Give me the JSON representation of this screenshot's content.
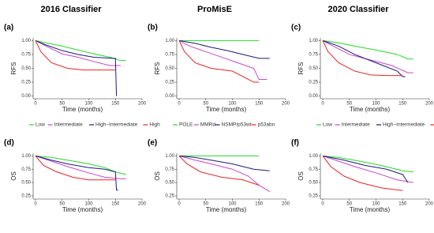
{
  "chart_data": [
    {
      "type": "line",
      "title": "2016 Classifier",
      "label": "(a)",
      "ylabel": "RFS",
      "xlabel": "Time (months)",
      "legend": true,
      "xlim": [
        0,
        200
      ],
      "xticks": [
        0,
        50,
        100,
        150,
        200
      ],
      "ylim": [
        -0.02,
        1.02
      ],
      "yticks": [
        {
          "value": 0,
          "label": "0.00"
        },
        {
          "value": 0.25,
          "label": "0.25"
        },
        {
          "value": 0.5,
          "label": "0.50"
        },
        {
          "value": 0.75,
          "label": "0.75"
        },
        {
          "value": 1,
          "label": "1.00"
        }
      ],
      "series": [
        {
          "name": "Low",
          "color": "#22dd22",
          "x": [
            0,
            20,
            50,
            80,
            110,
            140,
            160,
            170
          ],
          "values": [
            1,
            0.96,
            0.9,
            0.83,
            0.76,
            0.7,
            0.64,
            0.64
          ]
        },
        {
          "name": "Intermediate",
          "color": "#cc44cc",
          "x": [
            0,
            20,
            50,
            80,
            110,
            140,
            160
          ],
          "values": [
            1,
            0.9,
            0.76,
            0.7,
            0.62,
            0.55,
            0.55
          ]
        },
        {
          "name": "High−Intermediate",
          "color": "#1a1a7a",
          "x": [
            0,
            20,
            50,
            80,
            110,
            145,
            150,
            152
          ],
          "values": [
            1,
            0.92,
            0.82,
            0.75,
            0.7,
            0.68,
            0.68,
            0
          ]
        },
        {
          "name": "High",
          "color": "#ee2222",
          "x": [
            0,
            10,
            30,
            60,
            90,
            150
          ],
          "values": [
            1,
            0.8,
            0.6,
            0.5,
            0.47,
            0.47
          ]
        }
      ]
    },
    {
      "type": "line",
      "title": "ProMisE",
      "label": "(b)",
      "ylabel": "RFS",
      "xlabel": "Time (months)",
      "legend": true,
      "xlim": [
        0,
        200
      ],
      "xticks": [
        0,
        50,
        100,
        150,
        200
      ],
      "ylim": [
        -0.02,
        1.02
      ],
      "yticks": [
        {
          "value": 0,
          "label": "0.00"
        },
        {
          "value": 0.25,
          "label": "0.25"
        },
        {
          "value": 0.5,
          "label": "0.50"
        },
        {
          "value": 0.75,
          "label": "0.75"
        },
        {
          "value": 1,
          "label": "1.00"
        }
      ],
      "series": [
        {
          "name": "POLE",
          "color": "#22dd22",
          "x": [
            0,
            150
          ],
          "values": [
            1,
            1
          ]
        },
        {
          "name": "MMRd",
          "color": "#cc44cc",
          "x": [
            0,
            20,
            50,
            80,
            110,
            140,
            150,
            165
          ],
          "values": [
            1,
            0.9,
            0.8,
            0.7,
            0.6,
            0.5,
            0.3,
            0.3
          ]
        },
        {
          "name": "NSMP/p53wt",
          "color": "#1a1a7a",
          "x": [
            0,
            30,
            60,
            90,
            120,
            150,
            170
          ],
          "values": [
            1,
            0.95,
            0.88,
            0.82,
            0.75,
            0.68,
            0.68
          ]
        },
        {
          "name": "p53abn",
          "color": "#ee2222",
          "x": [
            0,
            10,
            30,
            60,
            100,
            140,
            150
          ],
          "values": [
            1,
            0.8,
            0.6,
            0.5,
            0.45,
            0.25,
            0.25
          ]
        }
      ]
    },
    {
      "type": "line",
      "title": "2020 Classifier",
      "label": "(c)",
      "ylabel": "RFS",
      "xlabel": "Time (months)",
      "legend": true,
      "xlim": [
        0,
        200
      ],
      "xticks": [
        0,
        50,
        100,
        150,
        200
      ],
      "ylim": [
        -0.02,
        1.02
      ],
      "yticks": [
        {
          "value": 0,
          "label": "0.00"
        },
        {
          "value": 0.25,
          "label": "0.25"
        },
        {
          "value": 0.5,
          "label": "0.50"
        },
        {
          "value": 0.75,
          "label": "0.75"
        },
        {
          "value": 1,
          "label": "1.00"
        }
      ],
      "series": [
        {
          "name": "Low",
          "color": "#22dd22",
          "x": [
            0,
            30,
            60,
            100,
            140,
            160,
            170
          ],
          "values": [
            1,
            0.96,
            0.9,
            0.83,
            0.75,
            0.67,
            0.67
          ]
        },
        {
          "name": "Intermediate",
          "color": "#cc44cc",
          "x": [
            0,
            20,
            50,
            90,
            130,
            160,
            170
          ],
          "values": [
            1,
            0.9,
            0.75,
            0.65,
            0.55,
            0.42,
            0.42
          ]
        },
        {
          "name": "High−Intermediate",
          "color": "#1a1a7a",
          "x": [
            0,
            30,
            60,
            100,
            140,
            150,
            155
          ],
          "values": [
            1,
            0.9,
            0.75,
            0.6,
            0.45,
            0.35,
            0.35
          ]
        },
        {
          "name": "High",
          "color": "#ee2222",
          "x": [
            0,
            10,
            30,
            60,
            90,
            120,
            150
          ],
          "values": [
            1,
            0.8,
            0.6,
            0.45,
            0.38,
            0.37,
            0.37
          ]
        }
      ]
    },
    {
      "type": "line",
      "label": "(d)",
      "ylabel": "OS",
      "xlabel": "Time (months)",
      "legend": false,
      "xlim": [
        0,
        200
      ],
      "xticks": [
        0,
        50,
        100,
        150,
        200
      ],
      "ylim": [
        0.22,
        1.02
      ],
      "yticks": [
        {
          "value": 0.25,
          "label": "0.25"
        },
        {
          "value": 0.5,
          "label": "0.50"
        },
        {
          "value": 0.75,
          "label": "0.75"
        },
        {
          "value": 1,
          "label": "1.00"
        }
      ],
      "series": [
        {
          "color": "#22dd22",
          "x": [
            0,
            30,
            60,
            100,
            130,
            150,
            170
          ],
          "values": [
            1,
            0.97,
            0.92,
            0.85,
            0.78,
            0.7,
            0.65
          ]
        },
        {
          "color": "#cc44cc",
          "x": [
            0,
            30,
            60,
            100,
            130,
            160,
            170
          ],
          "values": [
            1,
            0.9,
            0.8,
            0.68,
            0.6,
            0.57,
            0.57
          ]
        },
        {
          "color": "#1a1a7a",
          "x": [
            0,
            30,
            60,
            100,
            130,
            150,
            152,
            155
          ],
          "values": [
            1,
            0.92,
            0.85,
            0.78,
            0.75,
            0.7,
            0.36,
            0.36
          ]
        },
        {
          "color": "#ee2222",
          "x": [
            0,
            15,
            40,
            70,
            100,
            150
          ],
          "values": [
            1,
            0.82,
            0.7,
            0.6,
            0.55,
            0.55
          ]
        }
      ]
    },
    {
      "type": "line",
      "label": "(e)",
      "ylabel": "OS",
      "xlabel": "Time (months)",
      "legend": false,
      "xlim": [
        0,
        200
      ],
      "xticks": [
        0,
        50,
        100,
        150,
        200
      ],
      "ylim": [
        0.22,
        1.02
      ],
      "yticks": [
        {
          "value": 0.25,
          "label": "0.25"
        },
        {
          "value": 0.5,
          "label": "0.50"
        },
        {
          "value": 0.75,
          "label": "0.75"
        },
        {
          "value": 1,
          "label": "1.00"
        }
      ],
      "series": [
        {
          "color": "#22dd22",
          "x": [
            0,
            150
          ],
          "values": [
            1,
            1
          ]
        },
        {
          "color": "#cc44cc",
          "x": [
            0,
            30,
            60,
            100,
            130,
            150,
            170
          ],
          "values": [
            1,
            0.92,
            0.85,
            0.75,
            0.62,
            0.45,
            0.33
          ]
        },
        {
          "color": "#1a1a7a",
          "x": [
            0,
            30,
            60,
            100,
            140,
            170
          ],
          "values": [
            1,
            0.97,
            0.92,
            0.85,
            0.75,
            0.72
          ]
        },
        {
          "color": "#ee2222",
          "x": [
            0,
            15,
            40,
            80,
            120,
            150
          ],
          "values": [
            1,
            0.85,
            0.7,
            0.6,
            0.55,
            0.45
          ]
        }
      ]
    },
    {
      "type": "line",
      "label": "(f)",
      "ylabel": "OS",
      "xlabel": "Time (months)",
      "legend": false,
      "xlim": [
        0,
        200
      ],
      "xticks": [
        0,
        50,
        100,
        150,
        200
      ],
      "ylim": [
        0.22,
        1.02
      ],
      "yticks": [
        {
          "value": 0.25,
          "label": "0.25"
        },
        {
          "value": 0.5,
          "label": "0.50"
        },
        {
          "value": 0.75,
          "label": "0.75"
        },
        {
          "value": 1,
          "label": "1.00"
        }
      ],
      "series": [
        {
          "color": "#22dd22",
          "x": [
            0,
            30,
            70,
            110,
            150,
            170
          ],
          "values": [
            1,
            0.97,
            0.9,
            0.82,
            0.72,
            0.7
          ]
        },
        {
          "color": "#cc44cc",
          "x": [
            0,
            30,
            60,
            100,
            140,
            170
          ],
          "values": [
            1,
            0.9,
            0.8,
            0.68,
            0.55,
            0.5
          ]
        },
        {
          "color": "#1a1a7a",
          "x": [
            0,
            40,
            80,
            120,
            150,
            160
          ],
          "values": [
            1,
            0.92,
            0.82,
            0.75,
            0.65,
            0.5
          ]
        },
        {
          "color": "#ee2222",
          "x": [
            0,
            15,
            40,
            70,
            110,
            150
          ],
          "values": [
            1,
            0.8,
            0.62,
            0.5,
            0.4,
            0.35
          ]
        }
      ]
    }
  ]
}
